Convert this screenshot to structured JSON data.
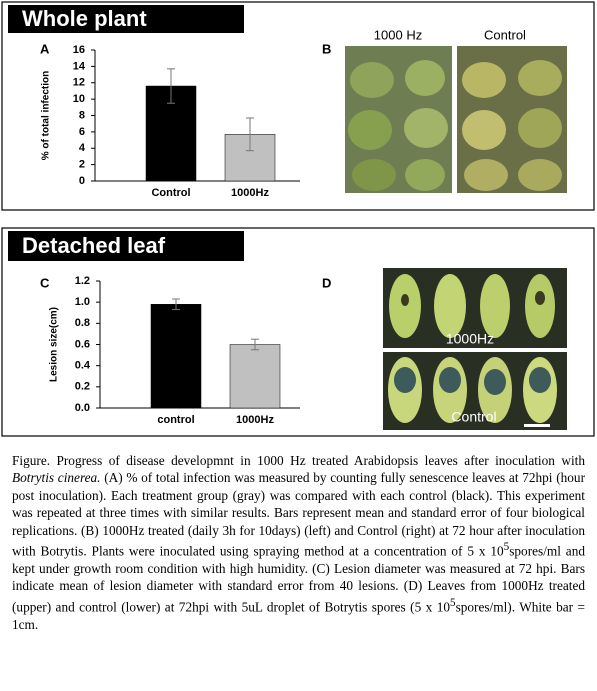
{
  "sections": [
    {
      "title": "Whole plant"
    },
    {
      "title": "Detached leaf"
    }
  ],
  "panel_labels": [
    "A",
    "B",
    "C",
    "D"
  ],
  "photo_labels": [
    "1000 Hz",
    "Control",
    "1000Hz",
    "Control"
  ],
  "chart_data": [
    {
      "type": "bar",
      "ylabel": "% of total infection",
      "categories": [
        "Control",
        "1000Hz"
      ],
      "values": [
        11.6,
        5.7
      ],
      "errors": [
        2.1,
        2.0
      ],
      "colors": [
        "#000000",
        "#c0c0c0"
      ],
      "ylim": [
        0,
        16
      ],
      "yticks": [
        0,
        2,
        4,
        6,
        8,
        10,
        12,
        14,
        16
      ],
      "grid": false
    },
    {
      "type": "bar",
      "ylabel": "Lesion size(cm)",
      "categories": [
        "control",
        "1000Hz"
      ],
      "values": [
        0.98,
        0.6
      ],
      "errors": [
        0.05,
        0.05
      ],
      "colors": [
        "#000000",
        "#c0c0c0"
      ],
      "ylim": [
        0,
        1.2
      ],
      "yticks": [
        {
          "value": 0,
          "label": "0.0"
        },
        0.2,
        0.4,
        0.6,
        0.8,
        {
          "value": 1,
          "label": "1.0"
        },
        1.2
      ],
      "grid": false
    }
  ],
  "caption": [
    "Figure. Progress of disease developmnt in 1000 Hz treated Arabidopsis leaves after inoculation with ",
    "Botrytis cinerea.",
    " (A) % of total infection was measured by counting fully senescence leaves at 72hpi (hour post inoculation). Each treatment group (gray) was compared with each control (black). This experiment was repeated at three times with similar results. Bars represent mean and standard error of four biological replications. (B) 1000Hz treated (daily 3h for 10days) (left) and Control (right) at 72 hour after inoculation with Botrytis. Plants were inoculated using spraying method at a concentration of 5 x 10",
    "5",
    "spores/ml and kept under growth room condition with high humidity. (C) Lesion diameter was measured at 72 hpi.  Bars indicate mean of lesion diameter with standard error from 40 lesions. (D) Leaves from 1000Hz treated (upper) and control (lower) at 72hpi with 5uL droplet of Botrytis spores (5 x 10",
    "5",
    "spores/ml). White bar = 1cm."
  ]
}
